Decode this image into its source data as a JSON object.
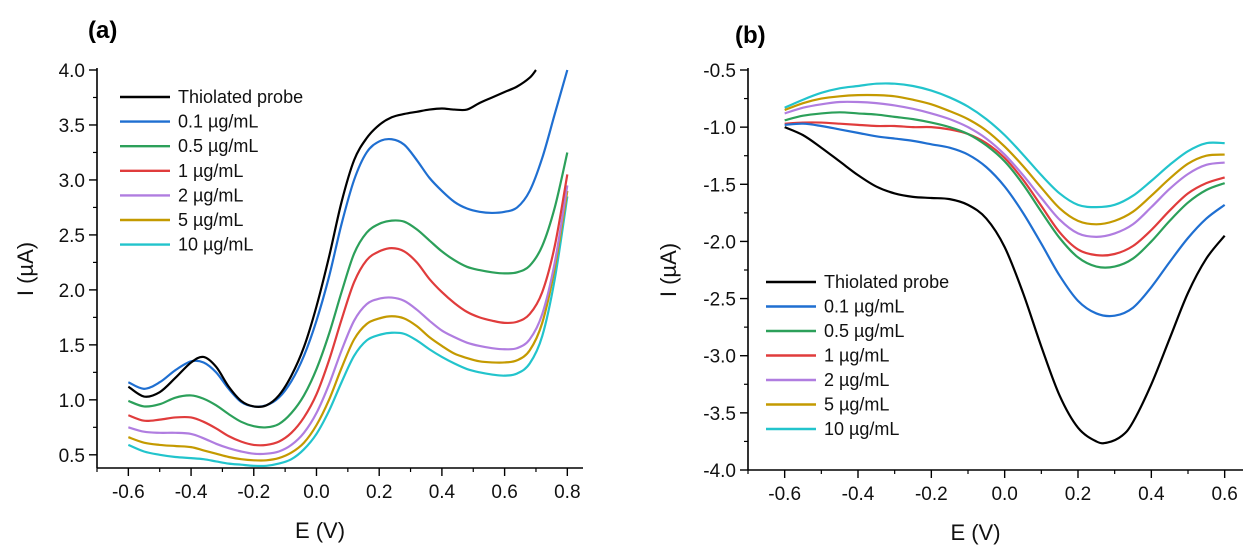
{
  "colors": {
    "axis": "#000000",
    "series": [
      "#000000",
      "#1f6fd1",
      "#2ca05a",
      "#e03c3c",
      "#b07de0",
      "#c49a00",
      "#22c4cc"
    ]
  },
  "chart_data": [
    {
      "type": "line",
      "panel_label": "(a)",
      "xlabel": "E (V)",
      "ylabel": "I (µA)",
      "xlim": [
        -0.7,
        0.85
      ],
      "ylim": [
        0.38,
        4.0
      ],
      "xticks": [
        -0.6,
        -0.4,
        -0.2,
        0.0,
        0.2,
        0.4,
        0.6,
        0.8
      ],
      "xtick_labels": [
        "-0.6",
        "-0.4",
        "-0.2",
        "0.0",
        "0.2",
        "0.4",
        "0.6",
        "0.8"
      ],
      "yticks": [
        0.5,
        1.0,
        1.5,
        2.0,
        2.5,
        3.0,
        3.5,
        4.0
      ],
      "ytick_labels": [
        "0.5",
        "1.0",
        "1.5",
        "2.0",
        "2.5",
        "3.0",
        "3.5",
        "4.0"
      ],
      "legend_position": "top-left",
      "series": [
        {
          "name": "Thiolated probe",
          "x": [
            -0.6,
            -0.55,
            -0.5,
            -0.45,
            -0.4,
            -0.36,
            -0.32,
            -0.28,
            -0.24,
            -0.2,
            -0.16,
            -0.12,
            -0.08,
            -0.04,
            0.0,
            0.04,
            0.08,
            0.12,
            0.16,
            0.2,
            0.24,
            0.28,
            0.32,
            0.36,
            0.4,
            0.44,
            0.48,
            0.52,
            0.56,
            0.6,
            0.64,
            0.68,
            0.7
          ],
          "y": [
            1.12,
            1.03,
            1.07,
            1.2,
            1.34,
            1.39,
            1.3,
            1.12,
            0.99,
            0.94,
            0.95,
            1.04,
            1.22,
            1.48,
            1.85,
            2.3,
            2.8,
            3.18,
            3.38,
            3.5,
            3.57,
            3.6,
            3.62,
            3.64,
            3.65,
            3.64,
            3.64,
            3.7,
            3.75,
            3.8,
            3.85,
            3.93,
            4.0
          ]
        },
        {
          "name": "0.1 µg/mL",
          "x": [
            -0.6,
            -0.55,
            -0.5,
            -0.45,
            -0.4,
            -0.36,
            -0.32,
            -0.28,
            -0.24,
            -0.2,
            -0.16,
            -0.12,
            -0.08,
            -0.04,
            0.0,
            0.04,
            0.08,
            0.12,
            0.16,
            0.2,
            0.24,
            0.28,
            0.32,
            0.36,
            0.4,
            0.44,
            0.48,
            0.52,
            0.56,
            0.6,
            0.64,
            0.68,
            0.72,
            0.76,
            0.8
          ],
          "y": [
            1.16,
            1.1,
            1.16,
            1.27,
            1.35,
            1.34,
            1.25,
            1.1,
            0.98,
            0.94,
            0.95,
            1.02,
            1.17,
            1.4,
            1.72,
            2.12,
            2.6,
            3.0,
            3.25,
            3.35,
            3.37,
            3.32,
            3.18,
            3.02,
            2.9,
            2.8,
            2.74,
            2.71,
            2.7,
            2.71,
            2.75,
            2.9,
            3.2,
            3.6,
            4.0
          ]
        },
        {
          "name": "0.5 µg/mL",
          "x": [
            -0.6,
            -0.55,
            -0.5,
            -0.45,
            -0.4,
            -0.36,
            -0.32,
            -0.28,
            -0.24,
            -0.2,
            -0.16,
            -0.12,
            -0.08,
            -0.04,
            0.0,
            0.04,
            0.08,
            0.12,
            0.16,
            0.2,
            0.24,
            0.28,
            0.32,
            0.36,
            0.4,
            0.44,
            0.48,
            0.52,
            0.56,
            0.6,
            0.64,
            0.68,
            0.72,
            0.76,
            0.8
          ],
          "y": [
            0.99,
            0.94,
            0.96,
            1.02,
            1.04,
            1.01,
            0.95,
            0.87,
            0.8,
            0.76,
            0.75,
            0.78,
            0.88,
            1.04,
            1.28,
            1.6,
            1.98,
            2.33,
            2.52,
            2.6,
            2.63,
            2.62,
            2.55,
            2.45,
            2.35,
            2.27,
            2.21,
            2.18,
            2.16,
            2.15,
            2.16,
            2.22,
            2.4,
            2.75,
            3.25
          ]
        },
        {
          "name": "1 µg/mL",
          "x": [
            -0.6,
            -0.55,
            -0.5,
            -0.45,
            -0.4,
            -0.36,
            -0.32,
            -0.28,
            -0.24,
            -0.2,
            -0.16,
            -0.12,
            -0.08,
            -0.04,
            0.0,
            0.04,
            0.08,
            0.12,
            0.16,
            0.2,
            0.24,
            0.28,
            0.32,
            0.36,
            0.4,
            0.44,
            0.48,
            0.52,
            0.56,
            0.6,
            0.64,
            0.68,
            0.72,
            0.76,
            0.8
          ],
          "y": [
            0.86,
            0.81,
            0.82,
            0.84,
            0.84,
            0.8,
            0.74,
            0.67,
            0.62,
            0.59,
            0.59,
            0.62,
            0.7,
            0.84,
            1.05,
            1.36,
            1.73,
            2.07,
            2.27,
            2.35,
            2.38,
            2.35,
            2.25,
            2.1,
            1.98,
            1.88,
            1.8,
            1.75,
            1.72,
            1.7,
            1.71,
            1.78,
            1.98,
            2.4,
            3.05
          ]
        },
        {
          "name": "2 µg/mL",
          "x": [
            -0.6,
            -0.55,
            -0.5,
            -0.45,
            -0.4,
            -0.36,
            -0.32,
            -0.28,
            -0.24,
            -0.2,
            -0.16,
            -0.12,
            -0.08,
            -0.04,
            0.0,
            0.04,
            0.08,
            0.12,
            0.16,
            0.2,
            0.24,
            0.28,
            0.32,
            0.36,
            0.4,
            0.44,
            0.48,
            0.52,
            0.56,
            0.6,
            0.64,
            0.68,
            0.72,
            0.76,
            0.8
          ],
          "y": [
            0.75,
            0.71,
            0.7,
            0.7,
            0.69,
            0.65,
            0.6,
            0.56,
            0.53,
            0.51,
            0.51,
            0.53,
            0.59,
            0.7,
            0.88,
            1.14,
            1.45,
            1.72,
            1.87,
            1.92,
            1.93,
            1.9,
            1.82,
            1.72,
            1.63,
            1.57,
            1.52,
            1.49,
            1.47,
            1.46,
            1.47,
            1.55,
            1.78,
            2.25,
            2.95
          ]
        },
        {
          "name": "5 µg/mL",
          "x": [
            -0.6,
            -0.55,
            -0.5,
            -0.45,
            -0.4,
            -0.36,
            -0.32,
            -0.28,
            -0.24,
            -0.2,
            -0.16,
            -0.12,
            -0.08,
            -0.04,
            0.0,
            0.04,
            0.08,
            0.12,
            0.16,
            0.2,
            0.24,
            0.28,
            0.32,
            0.36,
            0.4,
            0.44,
            0.48,
            0.52,
            0.56,
            0.6,
            0.64,
            0.68,
            0.72,
            0.76,
            0.8
          ],
          "y": [
            0.66,
            0.61,
            0.59,
            0.58,
            0.57,
            0.54,
            0.51,
            0.48,
            0.46,
            0.45,
            0.45,
            0.47,
            0.52,
            0.61,
            0.77,
            1.0,
            1.29,
            1.55,
            1.69,
            1.74,
            1.76,
            1.74,
            1.67,
            1.57,
            1.49,
            1.42,
            1.38,
            1.35,
            1.34,
            1.34,
            1.36,
            1.45,
            1.7,
            2.2,
            2.9
          ]
        },
        {
          "name": "10 µg/mL",
          "x": [
            -0.6,
            -0.55,
            -0.5,
            -0.45,
            -0.4,
            -0.36,
            -0.32,
            -0.28,
            -0.24,
            -0.2,
            -0.16,
            -0.12,
            -0.08,
            -0.04,
            0.0,
            0.04,
            0.08,
            0.12,
            0.16,
            0.2,
            0.24,
            0.28,
            0.32,
            0.36,
            0.4,
            0.44,
            0.48,
            0.52,
            0.56,
            0.6,
            0.64,
            0.68,
            0.72,
            0.76,
            0.8
          ],
          "y": [
            0.59,
            0.53,
            0.5,
            0.48,
            0.47,
            0.46,
            0.44,
            0.42,
            0.41,
            0.4,
            0.4,
            0.42,
            0.46,
            0.55,
            0.69,
            0.9,
            1.16,
            1.4,
            1.54,
            1.59,
            1.61,
            1.6,
            1.54,
            1.46,
            1.39,
            1.33,
            1.28,
            1.25,
            1.23,
            1.22,
            1.24,
            1.33,
            1.58,
            2.1,
            2.85
          ]
        }
      ]
    },
    {
      "type": "line",
      "panel_label": "(b)",
      "xlabel": "E (V)",
      "ylabel": "I (µA)",
      "xlim": [
        -0.7,
        0.65
      ],
      "ylim": [
        -4.0,
        -0.5
      ],
      "xticks": [
        -0.6,
        -0.4,
        -0.2,
        0.0,
        0.2,
        0.4,
        0.6
      ],
      "xtick_labels": [
        "-0.6",
        "-0.4",
        "-0.2",
        "0.0",
        "0.2",
        "0.4",
        "0.6"
      ],
      "yticks": [
        -4.0,
        -3.5,
        -3.0,
        -2.5,
        -2.0,
        -1.5,
        -1.0,
        -0.5
      ],
      "ytick_labels": [
        "-4.0",
        "-3.5",
        "-3.0",
        "-2.5",
        "-2.0",
        "-1.5",
        "-1.0",
        "-0.5"
      ],
      "legend_position": "bottom-left",
      "series": [
        {
          "name": "Thiolated probe",
          "x": [
            -0.6,
            -0.55,
            -0.5,
            -0.45,
            -0.4,
            -0.35,
            -0.3,
            -0.25,
            -0.2,
            -0.15,
            -0.1,
            -0.05,
            0.0,
            0.05,
            0.1,
            0.15,
            0.2,
            0.25,
            0.28,
            0.32,
            0.35,
            0.4,
            0.45,
            0.5,
            0.55,
            0.6
          ],
          "y": [
            -1.0,
            -1.07,
            -1.18,
            -1.3,
            -1.42,
            -1.52,
            -1.58,
            -1.61,
            -1.62,
            -1.63,
            -1.68,
            -1.8,
            -2.05,
            -2.45,
            -2.92,
            -3.35,
            -3.63,
            -3.75,
            -3.76,
            -3.7,
            -3.58,
            -3.25,
            -2.85,
            -2.45,
            -2.15,
            -1.95
          ]
        },
        {
          "name": "0.1 µg/mL",
          "x": [
            -0.6,
            -0.55,
            -0.5,
            -0.45,
            -0.4,
            -0.35,
            -0.3,
            -0.25,
            -0.2,
            -0.15,
            -0.1,
            -0.05,
            0.0,
            0.05,
            0.1,
            0.15,
            0.2,
            0.25,
            0.3,
            0.35,
            0.4,
            0.45,
            0.5,
            0.55,
            0.6
          ],
          "y": [
            -0.98,
            -0.97,
            -0.99,
            -1.02,
            -1.05,
            -1.08,
            -1.1,
            -1.12,
            -1.15,
            -1.18,
            -1.24,
            -1.35,
            -1.52,
            -1.75,
            -2.02,
            -2.3,
            -2.52,
            -2.63,
            -2.65,
            -2.58,
            -2.4,
            -2.18,
            -1.97,
            -1.8,
            -1.68
          ]
        },
        {
          "name": "0.5 µg/mL",
          "x": [
            -0.6,
            -0.55,
            -0.5,
            -0.45,
            -0.4,
            -0.35,
            -0.3,
            -0.25,
            -0.2,
            -0.15,
            -0.1,
            -0.05,
            0.0,
            0.05,
            0.1,
            0.15,
            0.2,
            0.25,
            0.3,
            0.35,
            0.4,
            0.45,
            0.5,
            0.55,
            0.6
          ],
          "y": [
            -0.94,
            -0.9,
            -0.88,
            -0.87,
            -0.88,
            -0.89,
            -0.91,
            -0.93,
            -0.96,
            -1.0,
            -1.06,
            -1.16,
            -1.3,
            -1.5,
            -1.74,
            -1.97,
            -2.14,
            -2.22,
            -2.22,
            -2.15,
            -2.0,
            -1.82,
            -1.66,
            -1.55,
            -1.49
          ]
        },
        {
          "name": "1 µg/mL",
          "x": [
            -0.6,
            -0.55,
            -0.5,
            -0.45,
            -0.4,
            -0.35,
            -0.3,
            -0.25,
            -0.2,
            -0.15,
            -0.1,
            -0.05,
            0.0,
            0.05,
            0.1,
            0.15,
            0.2,
            0.25,
            0.3,
            0.35,
            0.4,
            0.45,
            0.5,
            0.55,
            0.6
          ],
          "y": [
            -0.97,
            -0.96,
            -0.96,
            -0.97,
            -0.98,
            -0.99,
            -0.99,
            -1.0,
            -1.0,
            -1.02,
            -1.06,
            -1.14,
            -1.27,
            -1.46,
            -1.69,
            -1.92,
            -2.07,
            -2.12,
            -2.11,
            -2.04,
            -1.9,
            -1.73,
            -1.58,
            -1.49,
            -1.44
          ]
        },
        {
          "name": "2 µg/mL",
          "x": [
            -0.6,
            -0.55,
            -0.5,
            -0.45,
            -0.4,
            -0.35,
            -0.3,
            -0.25,
            -0.2,
            -0.15,
            -0.1,
            -0.05,
            0.0,
            0.05,
            0.1,
            0.15,
            0.2,
            0.25,
            0.3,
            0.35,
            0.4,
            0.45,
            0.5,
            0.55,
            0.6
          ],
          "y": [
            -0.88,
            -0.83,
            -0.8,
            -0.78,
            -0.78,
            -0.79,
            -0.81,
            -0.84,
            -0.88,
            -0.93,
            -1.0,
            -1.1,
            -1.24,
            -1.42,
            -1.62,
            -1.81,
            -1.93,
            -1.96,
            -1.93,
            -1.85,
            -1.7,
            -1.54,
            -1.41,
            -1.33,
            -1.31
          ]
        },
        {
          "name": "5 µg/mL",
          "x": [
            -0.6,
            -0.55,
            -0.5,
            -0.45,
            -0.4,
            -0.35,
            -0.3,
            -0.25,
            -0.2,
            -0.15,
            -0.1,
            -0.05,
            0.0,
            0.05,
            0.1,
            0.15,
            0.2,
            0.25,
            0.3,
            0.35,
            0.4,
            0.45,
            0.5,
            0.55,
            0.6
          ],
          "y": [
            -0.85,
            -0.79,
            -0.75,
            -0.73,
            -0.72,
            -0.72,
            -0.73,
            -0.76,
            -0.8,
            -0.86,
            -0.93,
            -1.03,
            -1.17,
            -1.34,
            -1.53,
            -1.71,
            -1.82,
            -1.85,
            -1.82,
            -1.74,
            -1.6,
            -1.45,
            -1.32,
            -1.25,
            -1.24
          ]
        },
        {
          "name": "10 µg/mL",
          "x": [
            -0.6,
            -0.55,
            -0.5,
            -0.45,
            -0.4,
            -0.35,
            -0.3,
            -0.25,
            -0.2,
            -0.15,
            -0.1,
            -0.05,
            0.0,
            0.05,
            0.1,
            0.15,
            0.2,
            0.25,
            0.3,
            0.35,
            0.4,
            0.45,
            0.5,
            0.55,
            0.6
          ],
          "y": [
            -0.83,
            -0.76,
            -0.7,
            -0.66,
            -0.64,
            -0.62,
            -0.62,
            -0.64,
            -0.68,
            -0.74,
            -0.82,
            -0.93,
            -1.07,
            -1.24,
            -1.42,
            -1.58,
            -1.68,
            -1.7,
            -1.68,
            -1.6,
            -1.47,
            -1.33,
            -1.21,
            -1.14,
            -1.14
          ]
        }
      ]
    }
  ]
}
